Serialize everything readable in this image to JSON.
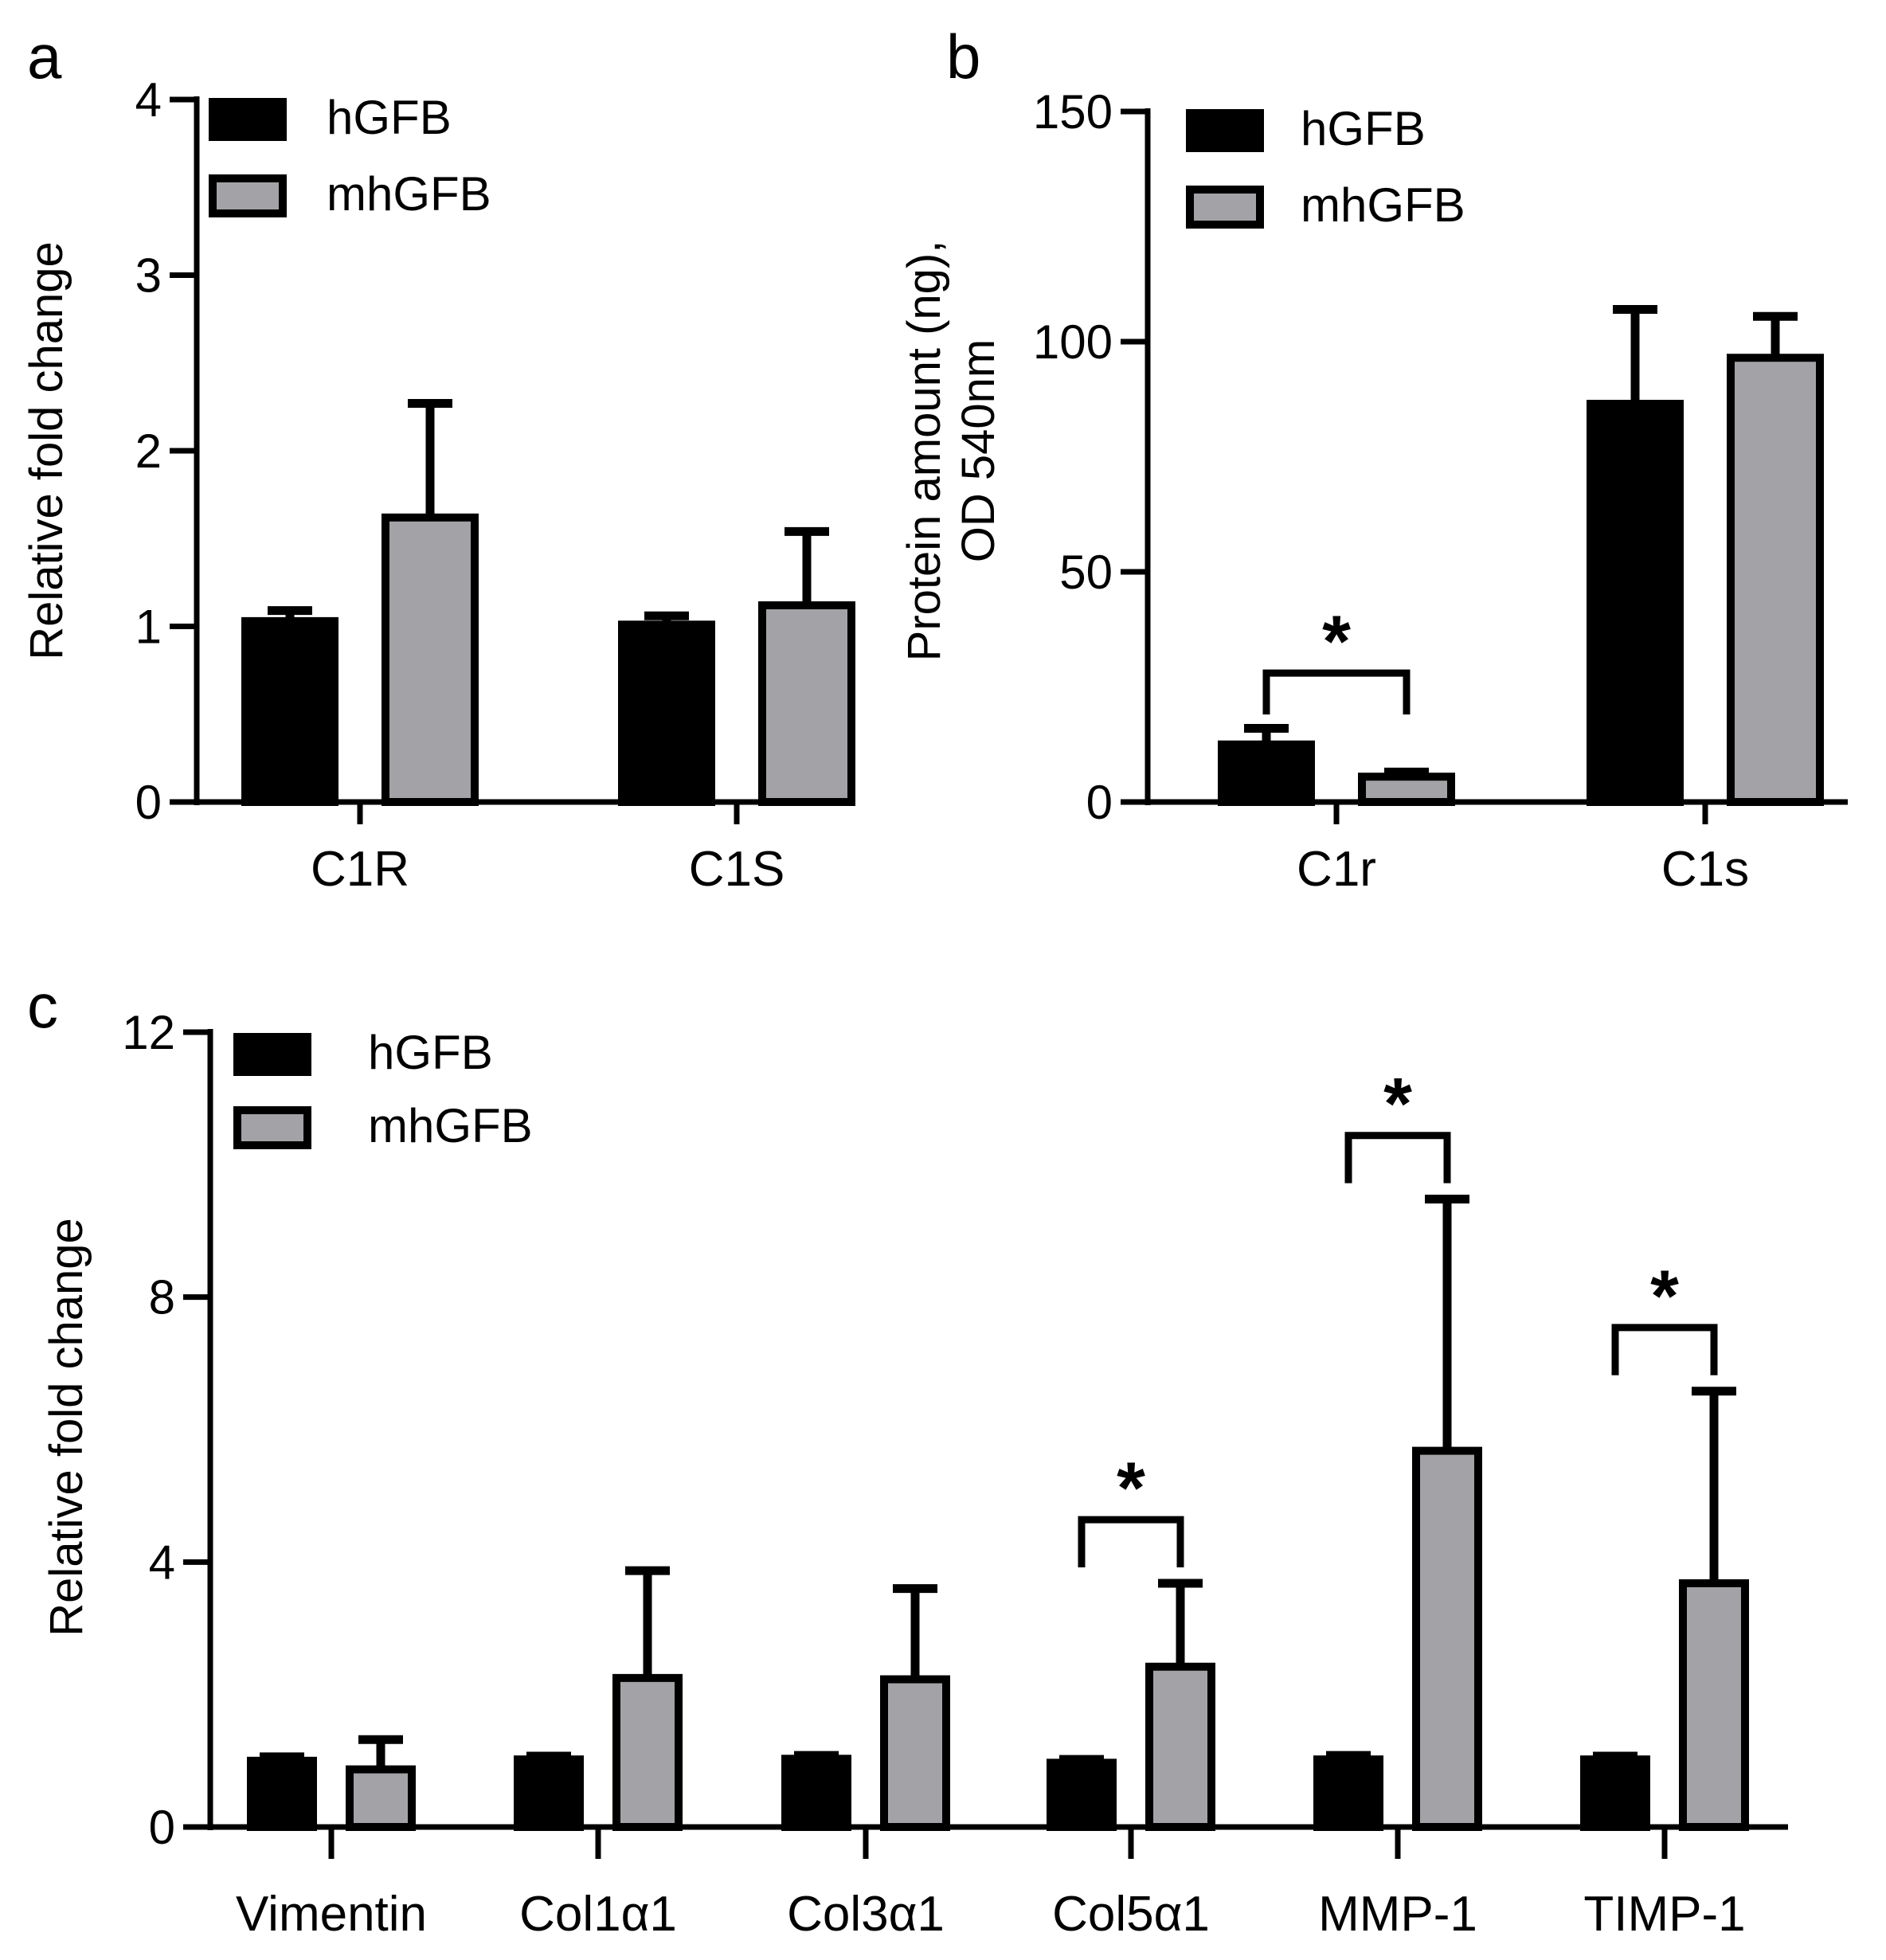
{
  "colors": {
    "hGFB": "#000000",
    "mhGFB": "#a3a3a7",
    "axis": "#000000"
  },
  "chart_data": [
    {
      "panel": "a",
      "type": "bar",
      "ylabel": "Relative fold change",
      "ylim": [
        0,
        4
      ],
      "yticks": [
        "0",
        "1",
        "2",
        "3",
        "4"
      ],
      "categories": [
        "C1R",
        "C1S"
      ],
      "series": [
        {
          "name": "hGFB",
          "values": [
            1.03,
            1.01
          ],
          "errors": [
            0.06,
            0.05
          ]
        },
        {
          "name": "mhGFB",
          "values": [
            1.62,
            1.12
          ],
          "errors": [
            0.65,
            0.42
          ]
        }
      ],
      "legend": [
        "hGFB",
        "mhGFB"
      ],
      "significance": []
    },
    {
      "panel": "b",
      "type": "bar",
      "ylabel_lines": [
        "Protein amount (ng),",
        "OD 540nm"
      ],
      "ylim": [
        0,
        150
      ],
      "yticks": [
        "0",
        "50",
        "100",
        "150"
      ],
      "categories": [
        "C1r",
        "C1s"
      ],
      "series": [
        {
          "name": "hGFB",
          "values": [
            12.5,
            86.5
          ],
          "errors": [
            3.5,
            20.5
          ]
        },
        {
          "name": "mhGFB",
          "values": [
            5.5,
            96.5
          ],
          "errors": [
            1.0,
            9.0
          ]
        }
      ],
      "legend": [
        "hGFB",
        "mhGFB"
      ],
      "significance": [
        {
          "category": 0,
          "label": "*"
        }
      ]
    },
    {
      "panel": "c",
      "type": "bar",
      "ylabel": "Relative fold change",
      "ylim": [
        0,
        12
      ],
      "yticks": [
        "0",
        "4",
        "8",
        "12"
      ],
      "categories": [
        "Vimentin",
        "Col1α1",
        "Col3α1",
        "Col5α1",
        "MMP-1",
        "TIMP-1"
      ],
      "series": [
        {
          "name": "hGFB",
          "values": [
            1.0,
            1.02,
            1.03,
            0.97,
            1.02,
            1.02
          ],
          "errors": [
            0.06,
            0.05,
            0.05,
            0.05,
            0.06,
            0.05
          ]
        },
        {
          "name": "mhGFB",
          "values": [
            0.87,
            2.25,
            2.23,
            2.42,
            5.68,
            3.68
          ],
          "errors": [
            0.45,
            1.62,
            1.37,
            1.26,
            3.8,
            2.9
          ]
        }
      ],
      "legend": [
        "hGFB",
        "mhGFB"
      ],
      "significance": [
        {
          "category": 3,
          "label": "*"
        },
        {
          "category": 4,
          "label": "*"
        },
        {
          "category": 5,
          "label": "*"
        }
      ]
    }
  ]
}
